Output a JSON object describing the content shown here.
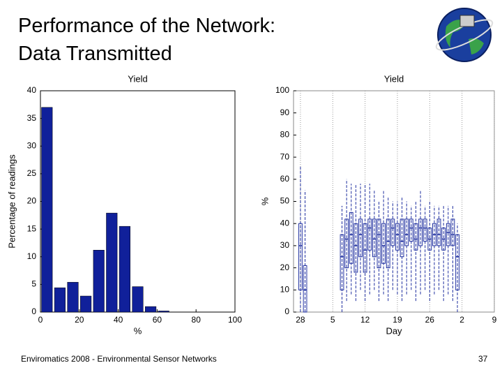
{
  "slide": {
    "title": [
      "Performance of the Network:",
      "Data Transmitted"
    ],
    "footer": "Enviromatics 2008 - Environmental Sensor Networks",
    "page": "37"
  },
  "chart_data": [
    {
      "type": "histogram",
      "title": "Yield",
      "xlabel": "%",
      "ylabel": "Percentage of readings",
      "color": "#10209a",
      "bins": [
        0,
        6.67,
        13.33,
        20,
        26.67,
        33.33,
        40,
        46.67,
        53.33,
        60,
        66.67,
        73.33,
        80,
        86.67,
        93.33,
        100
      ],
      "counts": [
        37,
        4.4,
        5.4,
        2.9,
        11.2,
        17.9,
        15.5,
        4.6,
        1,
        0.2,
        0,
        0,
        0,
        0,
        0
      ],
      "xlim": [
        0,
        100
      ],
      "xticks": [
        0,
        20,
        40,
        60,
        80,
        100
      ],
      "ylim": [
        0,
        40
      ],
      "yticks": [
        0,
        5,
        10,
        15,
        20,
        25,
        30,
        35,
        40
      ]
    },
    {
      "type": "box",
      "title": "Yield",
      "xlabel": "Day",
      "ylabel": "%",
      "color": "#2030a0",
      "grid": "x",
      "xlim": [
        -1.5,
        42
      ],
      "xticks": [
        {
          "value": 0,
          "label": "28"
        },
        {
          "value": 7,
          "label": "5"
        },
        {
          "value": 14,
          "label": "12"
        },
        {
          "value": 21,
          "label": "19"
        },
        {
          "value": 28,
          "label": "26"
        },
        {
          "value": 35,
          "label": "2"
        },
        {
          "value": 42,
          "label": "9"
        }
      ],
      "ylim": [
        0,
        100
      ],
      "yticks": [
        0,
        10,
        20,
        30,
        40,
        50,
        60,
        70,
        80,
        90,
        100
      ],
      "boxes": [
        {
          "x": 0,
          "low": 0,
          "q1": 10,
          "median": 30,
          "q3": 40,
          "high": 66
        },
        {
          "x": 1,
          "low": 0,
          "q1": 0,
          "median": 10,
          "q3": 21,
          "high": 55
        },
        {
          "x": 9,
          "low": 0,
          "q1": 10,
          "median": 25,
          "q3": 35,
          "high": 48
        },
        {
          "x": 10,
          "low": 5,
          "q1": 20,
          "median": 33,
          "q3": 42,
          "high": 60
        },
        {
          "x": 11,
          "low": 8,
          "q1": 22,
          "median": 35,
          "q3": 45,
          "high": 58
        },
        {
          "x": 12,
          "low": 5,
          "q1": 18,
          "median": 30,
          "q3": 40,
          "high": 58
        },
        {
          "x": 13,
          "low": 10,
          "q1": 25,
          "median": 35,
          "q3": 42,
          "high": 58
        },
        {
          "x": 14,
          "low": 5,
          "q1": 18,
          "median": 28,
          "q3": 40,
          "high": 58
        },
        {
          "x": 15,
          "low": 8,
          "q1": 28,
          "median": 38,
          "q3": 42,
          "high": 58
        },
        {
          "x": 16,
          "low": 10,
          "q1": 25,
          "median": 33,
          "q3": 42,
          "high": 55
        },
        {
          "x": 17,
          "low": 5,
          "q1": 20,
          "median": 35,
          "q3": 42,
          "high": 50
        },
        {
          "x": 18,
          "low": 8,
          "q1": 22,
          "median": 30,
          "q3": 40,
          "high": 55
        },
        {
          "x": 19,
          "low": 5,
          "q1": 20,
          "median": 32,
          "q3": 42,
          "high": 52
        },
        {
          "x": 20,
          "low": 10,
          "q1": 30,
          "median": 38,
          "q3": 42,
          "high": 50
        },
        {
          "x": 21,
          "low": 8,
          "q1": 28,
          "median": 35,
          "q3": 40,
          "high": 50
        },
        {
          "x": 22,
          "low": 5,
          "q1": 25,
          "median": 32,
          "q3": 42,
          "high": 52
        },
        {
          "x": 23,
          "low": 8,
          "q1": 30,
          "median": 35,
          "q3": 42,
          "high": 50
        },
        {
          "x": 24,
          "low": 10,
          "q1": 32,
          "median": 38,
          "q3": 42,
          "high": 48
        },
        {
          "x": 25,
          "low": 5,
          "q1": 28,
          "median": 33,
          "q3": 40,
          "high": 50
        },
        {
          "x": 26,
          "low": 8,
          "q1": 30,
          "median": 38,
          "q3": 42,
          "high": 55
        },
        {
          "x": 27,
          "low": 10,
          "q1": 32,
          "median": 38,
          "q3": 42,
          "high": 48
        },
        {
          "x": 28,
          "low": 5,
          "q1": 28,
          "median": 33,
          "q3": 38,
          "high": 50
        },
        {
          "x": 29,
          "low": 8,
          "q1": 30,
          "median": 35,
          "q3": 40,
          "high": 48
        },
        {
          "x": 30,
          "low": 10,
          "q1": 30,
          "median": 35,
          "q3": 42,
          "high": 48
        },
        {
          "x": 31,
          "low": 5,
          "q1": 28,
          "median": 33,
          "q3": 38,
          "high": 48
        },
        {
          "x": 32,
          "low": 8,
          "q1": 30,
          "median": 36,
          "q3": 40,
          "high": 48
        },
        {
          "x": 33,
          "low": 5,
          "q1": 30,
          "median": 35,
          "q3": 42,
          "high": 48
        },
        {
          "x": 34,
          "low": 0,
          "q1": 10,
          "median": 25,
          "q3": 35,
          "high": 40
        }
      ]
    }
  ]
}
